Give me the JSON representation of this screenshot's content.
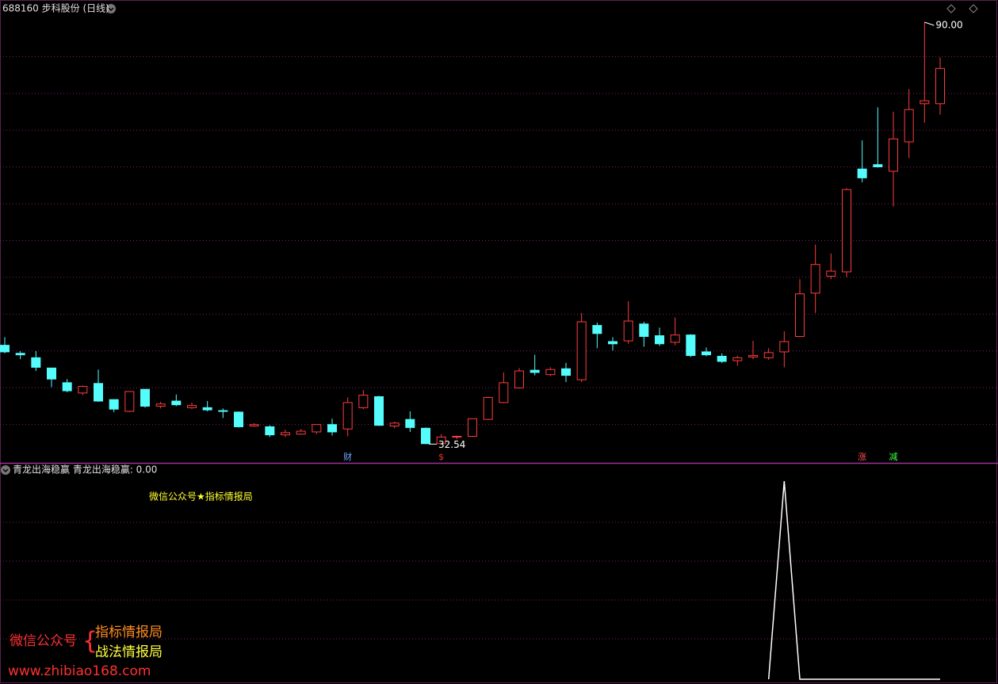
{
  "chart_data": [
    {
      "type": "candlestick",
      "title": "688160 步科股份 (日线)",
      "open": [
        46.0,
        44.9,
        44.3,
        42.9,
        40.9,
        39.5,
        40.8,
        38.6,
        37.0,
        40.0,
        37.7,
        38.4,
        37.5,
        37.5,
        37.1,
        36.9,
        35.0,
        34.9,
        33.8,
        33.9,
        34.2,
        35.2,
        34.6,
        37.5,
        39.0,
        35.0,
        35.9,
        34.7,
        32.6,
        33.5,
        33.6,
        35.9,
        38.2,
        40.2,
        42.6,
        42.0,
        42.8,
        41.3,
        48.7,
        46.5,
        46.6,
        48.9,
        47.3,
        46.4,
        47.4,
        45.1,
        44.5,
        43.9,
        44.4,
        44.3,
        45.1,
        47.2,
        53.1,
        55.4,
        56.0,
        70.0,
        70.6,
        69.7,
        73.7,
        78.9,
        78.9
      ],
      "close": [
        45.1,
        44.7,
        43.0,
        41.4,
        39.8,
        40.4,
        38.4,
        37.3,
        39.7,
        37.7,
        38.0,
        37.9,
        37.8,
        37.2,
        37.0,
        34.9,
        35.2,
        33.8,
        34.1,
        34.3,
        35.2,
        34.2,
        38.2,
        39.2,
        35.1,
        35.4,
        34.8,
        32.6,
        33.5,
        33.6,
        36.0,
        38.9,
        40.9,
        42.5,
        42.3,
        42.7,
        41.9,
        49.2,
        47.6,
        46.2,
        49.3,
        47.2,
        46.2,
        47.4,
        44.6,
        44.7,
        43.8,
        44.3,
        44.6,
        45.0,
        46.5,
        53.0,
        57.0,
        56.1,
        67.2,
        68.8,
        70.3,
        74.1,
        78.1,
        79.3,
        83.7
      ],
      "high": [
        47.1,
        45.2,
        45.2,
        42.9,
        41.4,
        40.5,
        42.7,
        38.6,
        39.7,
        40.0,
        38.3,
        39.3,
        38.2,
        38.4,
        37.4,
        37.0,
        35.4,
        35.1,
        34.5,
        34.6,
        35.2,
        36.0,
        38.9,
        39.9,
        39.1,
        35.6,
        37.0,
        34.8,
        33.9,
        33.7,
        36.0,
        39.0,
        42.3,
        42.9,
        44.7,
        43.0,
        43.6,
        50.4,
        49.1,
        47.1,
        52.0,
        49.2,
        48.4,
        49.8,
        47.5,
        45.7,
        44.9,
        44.6,
        46.6,
        45.6,
        47.9,
        55.0,
        59.7,
        58.5,
        67.4,
        73.9,
        78.4,
        77.8,
        80.9,
        90.0,
        85.2
      ],
      "low": [
        44.9,
        44.1,
        42.5,
        40.3,
        39.6,
        39.2,
        38.3,
        36.9,
        36.9,
        37.5,
        37.4,
        37.7,
        37.3,
        37.0,
        36.1,
        34.8,
        34.9,
        33.5,
        33.5,
        33.8,
        33.9,
        33.7,
        33.6,
        37.3,
        35.0,
        34.7,
        34.2,
        32.54,
        32.6,
        33.2,
        33.5,
        35.8,
        38.1,
        40.1,
        41.9,
        41.8,
        41.0,
        41.0,
        45.6,
        45.3,
        46.2,
        45.8,
        45.9,
        46.0,
        44.4,
        44.5,
        43.6,
        43.2,
        44.1,
        44.0,
        43.0,
        47.2,
        50.4,
        55.0,
        55.3,
        68.2,
        70.2,
        64.9,
        71.5,
        76.3,
        77.4
      ],
      "markers": [
        null,
        null,
        null,
        null,
        null,
        null,
        null,
        null,
        null,
        null,
        null,
        null,
        null,
        null,
        null,
        null,
        null,
        null,
        null,
        null,
        null,
        null,
        {
          "text": "财",
          "color": "#6fa8ff"
        },
        null,
        null,
        null,
        null,
        null,
        {
          "text": "$",
          "color": "#ff3030"
        },
        null,
        null,
        null,
        null,
        null,
        null,
        null,
        null,
        null,
        null,
        null,
        null,
        null,
        null,
        null,
        null,
        null,
        null,
        null,
        null,
        null,
        null,
        null,
        null,
        null,
        null,
        {
          "text": "涨",
          "color": "#ff5050"
        },
        null,
        {
          "text": "减",
          "color": "#40ff40"
        },
        null,
        null,
        null,
        null
      ],
      "max_label": {
        "value": 90.0,
        "label": "90.00"
      },
      "min_label": {
        "value": 32.54,
        "label": "32.54"
      },
      "up_color": "#ff3c3c",
      "down_color": "#54fcfc",
      "grid": true,
      "ylim": [
        30.2,
        91.4
      ]
    },
    {
      "type": "line",
      "title": "青龙出海稳赢  青龙出海稳赢: 0.00",
      "annotation": "微信公众号★指标情报局",
      "values": [
        null,
        null,
        null,
        null,
        null,
        null,
        null,
        null,
        null,
        null,
        null,
        null,
        null,
        null,
        null,
        null,
        null,
        null,
        null,
        null,
        null,
        null,
        null,
        null,
        null,
        null,
        null,
        null,
        null,
        null,
        null,
        null,
        null,
        null,
        null,
        null,
        null,
        null,
        null,
        null,
        null,
        null,
        null,
        null,
        null,
        null,
        null,
        null,
        null,
        0,
        1,
        0,
        0,
        0,
        0,
        0,
        0,
        0,
        0,
        0,
        0
      ],
      "color": "#ffffff",
      "grid": true,
      "ylim": [
        0,
        1.08
      ]
    }
  ],
  "watermark": {
    "left": "微信公众号",
    "line1": "指标情报局",
    "line2": "战法情报局",
    "url": "www.zhibiao168.com"
  }
}
